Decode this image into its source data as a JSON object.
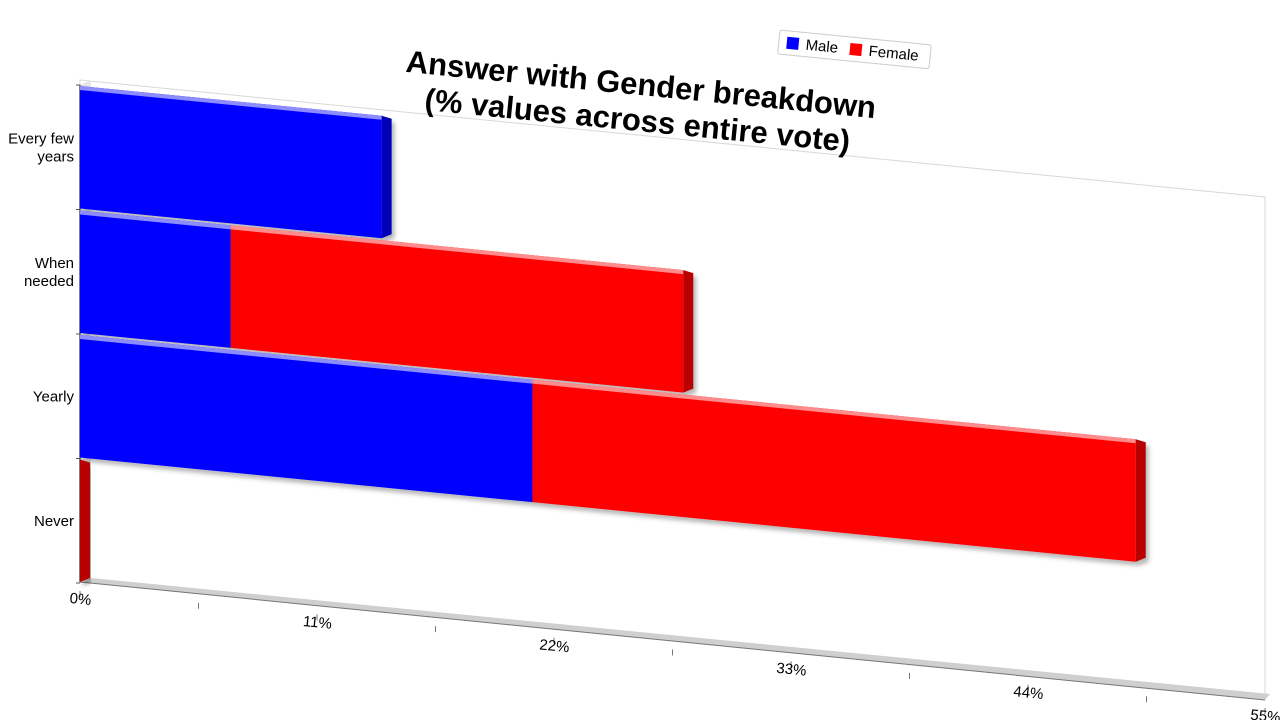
{
  "chart_data": {
    "type": "bar",
    "orientation": "horizontal",
    "stacked": true,
    "title": "Answer with Gender breakdown\n(% values across entire vote)",
    "categories": [
      "Every few years",
      "When needed",
      "Yearly",
      "Never"
    ],
    "series": [
      {
        "name": "Male",
        "color": "#0000ff",
        "values": [
          14,
          7,
          21,
          0
        ]
      },
      {
        "name": "Female",
        "color": "#ff0000",
        "values": [
          0,
          21,
          28,
          0
        ]
      }
    ],
    "x_ticks": [
      "0%",
      "11%",
      "22%",
      "33%",
      "44%",
      "55%"
    ],
    "xlim": [
      0,
      55
    ],
    "legend_position": "top-right",
    "grid": false
  }
}
